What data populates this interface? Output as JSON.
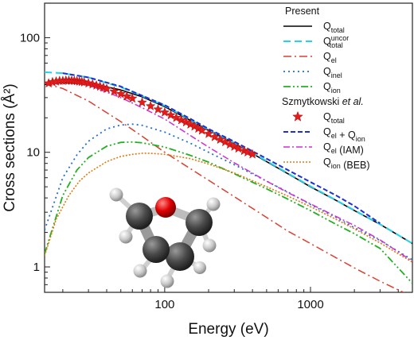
{
  "chart_data": {
    "type": "line",
    "xlabel": "Energy (eV)",
    "ylabel": "Cross sections (Å²)",
    "xscale": "log",
    "yscale": "log",
    "xlim": [
      15,
      5000
    ],
    "ylim": [
      0.6,
      200
    ],
    "x_ticks": [
      {
        "value": 100,
        "label": "100"
      },
      {
        "value": 1000,
        "label": "1000"
      }
    ],
    "y_ticks": [
      {
        "value": 1,
        "label": "1"
      },
      {
        "value": 10,
        "label": "10"
      },
      {
        "value": 100,
        "label": "100"
      }
    ],
    "legend": {
      "position": "top-right",
      "groups": [
        {
          "heading": "Present",
          "heading_suffix": ""
        },
        {
          "heading": "Szmytkowski",
          "heading_suffix": " et al."
        }
      ]
    },
    "series": [
      {
        "group": 0,
        "key": "qtotal",
        "label_main": "Q",
        "label_sub": "total",
        "label_sup": "",
        "label_tail": "",
        "color": "#000000",
        "dash": "",
        "width": 1.6,
        "marker": "none",
        "x": [
          15,
          20,
          30,
          50,
          70,
          100,
          150,
          200,
          300,
          500,
          700,
          1000,
          1500,
          2000,
          3000,
          5000
        ],
        "y": [
          39,
          40.5,
          40,
          35,
          30.5,
          25,
          19,
          15.5,
          12,
          8.3,
          6.5,
          5.0,
          3.8,
          3.1,
          2.35,
          1.6
        ]
      },
      {
        "group": 0,
        "key": "qtotal-uncor",
        "label_main": "Q",
        "label_sub": "total",
        "label_sup": "uncor",
        "label_tail": "",
        "color": "#22d3ee",
        "dash": "9 5",
        "width": 2,
        "marker": "none",
        "x": [
          15,
          20,
          30,
          50,
          70,
          100,
          150,
          200,
          300,
          500,
          700,
          1000,
          1500,
          2000,
          3000,
          5000
        ],
        "y": [
          50,
          49,
          45,
          37,
          31,
          25.5,
          19.2,
          15.7,
          12.1,
          8.4,
          6.55,
          5.05,
          3.82,
          3.12,
          2.36,
          1.6
        ]
      },
      {
        "group": 0,
        "key": "qel",
        "label_main": "Q",
        "label_sub": "el",
        "label_sup": "",
        "label_tail": "",
        "color": "#d94030",
        "dash": "10 4 2 4",
        "width": 1.5,
        "marker": "none",
        "x": [
          15,
          20,
          30,
          50,
          70,
          100,
          150,
          200,
          300,
          500,
          700,
          1000,
          1500,
          2000,
          3000,
          5000
        ],
        "y": [
          40,
          36,
          28,
          18.5,
          13.8,
          10,
          7.2,
          5.7,
          4.1,
          2.7,
          2.05,
          1.6,
          1.2,
          0.98,
          0.75,
          0.55
        ]
      },
      {
        "group": 0,
        "key": "qinel",
        "label_main": "Q",
        "label_sub": "inel",
        "label_sup": "",
        "label_tail": "",
        "color": "#1f6fd1",
        "dash": "2 4",
        "width": 1.8,
        "marker": "none",
        "x": [
          15,
          20,
          25,
          30,
          40,
          50,
          60,
          70,
          100,
          150,
          200,
          300,
          500,
          700,
          1000,
          1500,
          2000,
          3000,
          5000
        ],
        "y": [
          2.1,
          6,
          9.5,
          12.5,
          16,
          17.3,
          17.6,
          17.2,
          15,
          12,
          10,
          7.8,
          5.6,
          4.5,
          3.5,
          2.7,
          2.2,
          1.7,
          1.15
        ]
      },
      {
        "group": 0,
        "key": "qion",
        "label_main": "Q",
        "label_sub": "ion",
        "label_sup": "",
        "label_tail": "",
        "color": "#22b022",
        "dash": "9 3 2 3 2 3",
        "width": 1.8,
        "marker": "none",
        "x": [
          15,
          20,
          25,
          30,
          40,
          50,
          60,
          70,
          100,
          150,
          200,
          300,
          500,
          700,
          1000,
          1500,
          2000,
          3000,
          5000
        ],
        "y": [
          1.3,
          4.2,
          7,
          9,
          11.3,
          12.2,
          12.3,
          12.1,
          11.1,
          9.4,
          8.2,
          6.5,
          4.8,
          3.9,
          3.1,
          2.35,
          1.95,
          1.45,
          0.72
        ]
      },
      {
        "group": 1,
        "key": "sz-qtotal",
        "label_main": "Q",
        "label_sub": "total",
        "label_sup": "",
        "label_tail": "",
        "color": "#e51c1c",
        "dash": "",
        "width": 0,
        "marker": "star",
        "x": [
          16,
          17,
          18,
          19,
          20,
          21,
          22,
          23,
          24,
          25,
          26,
          27,
          28,
          30,
          32,
          34,
          36,
          38,
          40,
          45,
          50,
          55,
          60,
          70,
          80,
          90,
          100,
          110,
          120,
          130,
          140,
          150,
          160,
          170,
          180,
          200,
          220,
          240,
          260,
          280,
          300,
          320,
          350,
          370,
          400
        ],
        "y": [
          40,
          41,
          41.5,
          42,
          42,
          42.3,
          42.3,
          42.2,
          42,
          41.8,
          41.5,
          41.2,
          40.8,
          40,
          39.2,
          38.3,
          37.5,
          36.7,
          35.8,
          34,
          32.3,
          30.8,
          29.5,
          27.2,
          25.3,
          23.7,
          22.3,
          21.1,
          20,
          19.1,
          18.3,
          17.5,
          16.8,
          16.1,
          15.5,
          14.5,
          13.6,
          12.9,
          12.3,
          11.7,
          11.2,
          10.8,
          10.3,
          10,
          9.6
        ]
      },
      {
        "group": 1,
        "key": "sz-qel-qion",
        "label_main": "Q",
        "label_sub": "el",
        "label_sup": "",
        "label_tail": " + Q",
        "label_sub2": "ion",
        "color": "#1d2fd6",
        "dash": "6 3",
        "width": 2,
        "marker": "none",
        "x": [
          20,
          30,
          50,
          70,
          100,
          150,
          200,
          300,
          500,
          700,
          1000,
          1500,
          2000,
          3000
        ],
        "y": [
          49,
          45,
          37.5,
          31.2,
          25.8,
          19.6,
          16,
          12.4,
          8.8,
          7,
          5.5,
          4.2,
          3.4,
          2.4
        ]
      },
      {
        "group": 1,
        "key": "sz-qel-iam",
        "label_main": "Q",
        "label_sub": "el",
        "label_sup": "",
        "label_tail": " (IAM)",
        "color": "#d12fd1",
        "dash": "8 3 2 3",
        "width": 1.5,
        "marker": "none",
        "x": [
          20,
          30,
          50,
          70,
          100,
          150,
          200,
          300,
          500,
          700,
          1000,
          1500,
          2000,
          3000,
          5000
        ],
        "y": [
          42,
          38.5,
          30,
          24.5,
          19.5,
          14,
          11.1,
          8.1,
          5.6,
          4.45,
          3.55,
          2.75,
          2.3,
          1.72,
          1.12
        ]
      },
      {
        "group": 1,
        "key": "sz-qion-beb",
        "label_main": "Q",
        "label_sub": "ion",
        "label_sup": "",
        "label_tail": " (BEB)",
        "color": "#e07a10",
        "dash": "2 2",
        "width": 1.6,
        "marker": "none",
        "x": [
          15,
          18,
          22,
          26,
          30,
          40,
          50,
          60,
          70,
          80,
          100,
          150,
          200,
          300,
          500,
          700,
          1000,
          1500,
          2000,
          3000,
          5000
        ],
        "y": [
          1.25,
          2.6,
          4.2,
          5.6,
          6.6,
          8.3,
          9.2,
          9.6,
          9.8,
          9.8,
          9.6,
          8.8,
          7.9,
          6.6,
          5,
          4.15,
          3.35,
          2.6,
          2.15,
          1.62,
          1.1
        ]
      }
    ]
  }
}
